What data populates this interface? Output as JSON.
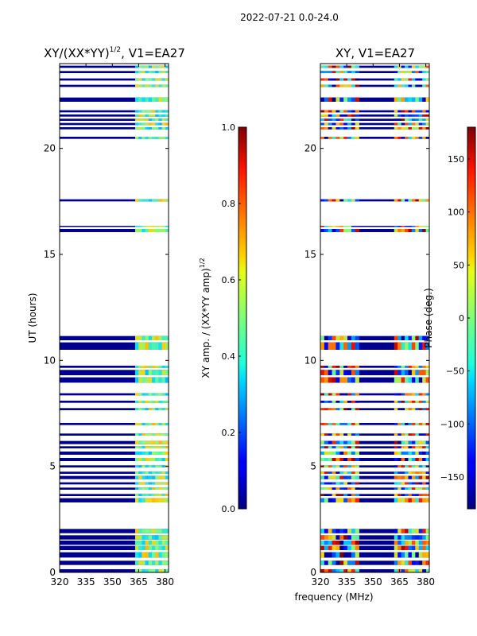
{
  "header": {
    "title": "2022-07-21 0.0-24.0"
  },
  "chart_data": [
    {
      "type": "heatmap",
      "title": "XY/(XX*YY)^1/2, V1=EA27",
      "title_main": "XY/(XX*YY)",
      "title_exp": "1/2",
      "title_suffix": ", V1=EA27",
      "xlabel": "",
      "ylabel": "UT (hours)",
      "xlim": [
        320,
        382
      ],
      "ylim": [
        0,
        24
      ],
      "xticks": [
        320,
        335,
        350,
        365,
        380
      ],
      "yticks": [
        0,
        5,
        10,
        15,
        20
      ],
      "colorbar": {
        "label": "XY amp. / (XX*YY amp)^1/2",
        "label_main": "XY amp. / (XX*YY amp)",
        "label_exp": "1/2",
        "range": [
          0.0,
          1.0
        ],
        "ticks": [
          "0.0",
          "0.2",
          "0.4",
          "0.6",
          "0.8",
          "1.0"
        ]
      },
      "data_rows_hours": [
        [
          0.0,
          0.15
        ],
        [
          0.35,
          0.55
        ],
        [
          0.7,
          0.95
        ],
        [
          1.05,
          1.25
        ],
        [
          1.3,
          1.5
        ],
        [
          1.55,
          1.75
        ],
        [
          1.85,
          2.05
        ],
        [
          3.3,
          3.5
        ],
        [
          3.6,
          3.7
        ],
        [
          3.9,
          4.0
        ],
        [
          4.15,
          4.25
        ],
        [
          4.4,
          4.55
        ],
        [
          4.65,
          4.75
        ],
        [
          4.95,
          5.05
        ],
        [
          5.25,
          5.4
        ],
        [
          5.55,
          5.7
        ],
        [
          5.85,
          5.95
        ],
        [
          6.05,
          6.2
        ],
        [
          6.45,
          6.55
        ],
        [
          6.95,
          7.05
        ],
        [
          7.65,
          7.75
        ],
        [
          8.0,
          8.1
        ],
        [
          8.35,
          8.45
        ],
        [
          8.95,
          9.2
        ],
        [
          9.3,
          9.55
        ],
        [
          9.65,
          9.75
        ],
        [
          10.5,
          10.85
        ],
        [
          10.95,
          11.15
        ],
        [
          16.05,
          16.2
        ],
        [
          16.3,
          16.35
        ],
        [
          17.5,
          17.6
        ],
        [
          20.45,
          20.55
        ],
        [
          20.9,
          21.0
        ],
        [
          21.1,
          21.2
        ],
        [
          21.3,
          21.4
        ],
        [
          21.5,
          21.6
        ],
        [
          21.7,
          21.8
        ],
        [
          22.2,
          22.4
        ],
        [
          22.9,
          23.0
        ],
        [
          23.2,
          23.3
        ],
        [
          23.55,
          23.65
        ],
        [
          23.8,
          23.9
        ]
      ],
      "signal_bands_mhz": [
        [
          363,
          382
        ]
      ]
    },
    {
      "type": "heatmap",
      "title": "XY, V1=EA27",
      "xlabel": "frequency (MHz)",
      "ylabel": "",
      "xlim": [
        320,
        382
      ],
      "ylim": [
        0,
        24
      ],
      "xticks": [
        320,
        335,
        350,
        365,
        380
      ],
      "yticks": [
        0,
        5,
        10,
        15,
        20
      ],
      "colorbar": {
        "label": "Phase (deg.)",
        "range": [
          -180,
          180
        ],
        "ticks": [
          "−150",
          "−100",
          "−50",
          "0",
          "50",
          "100",
          "150"
        ]
      },
      "signal_bands_mhz": [
        [
          320,
          342
        ],
        [
          362,
          382
        ]
      ]
    }
  ]
}
